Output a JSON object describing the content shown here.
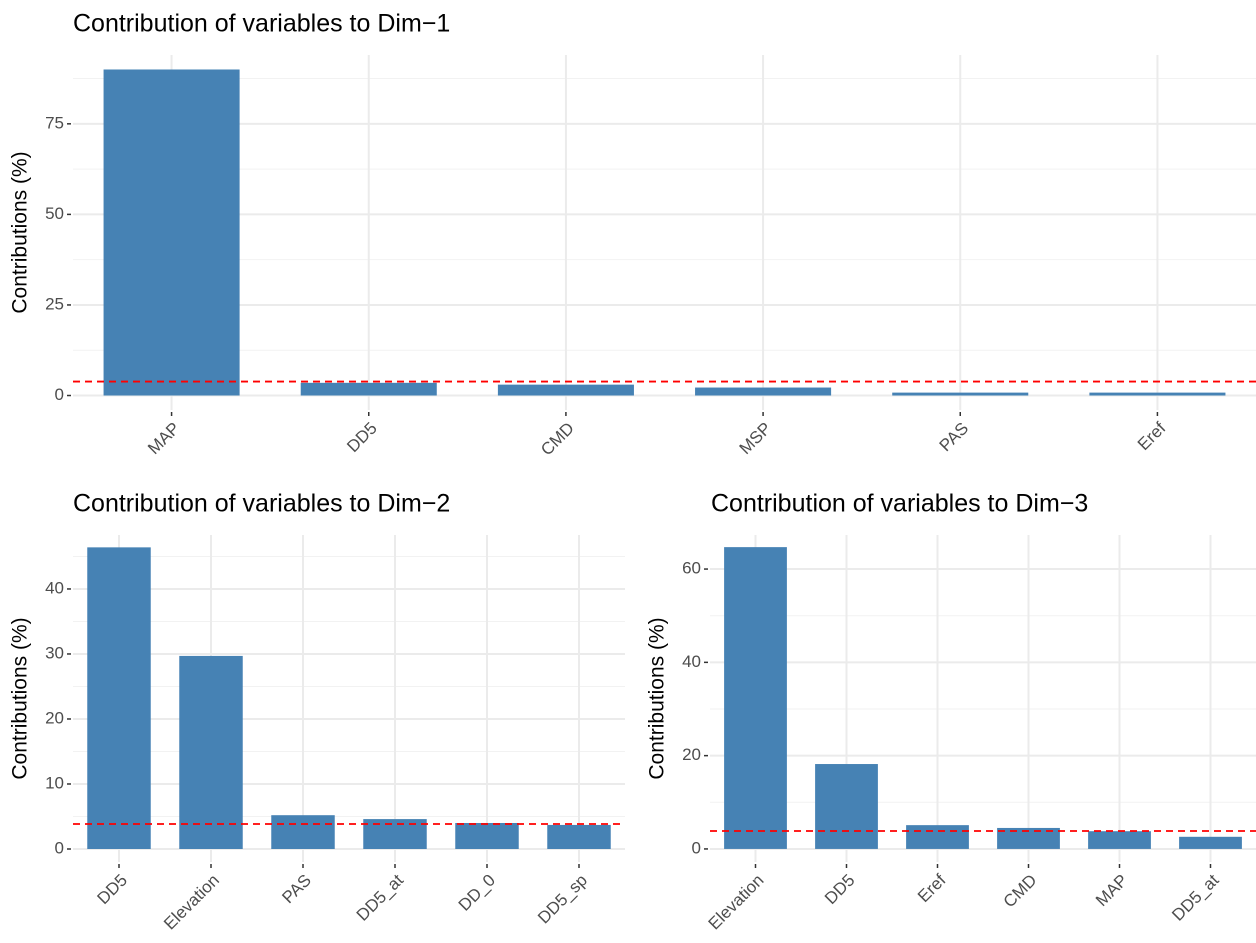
{
  "chart_data": [
    {
      "type": "bar",
      "title": "Contribution of variables to Dim−1",
      "y_label": "Contributions (%)",
      "categories": [
        "MAP",
        "DD5",
        "CMD",
        "MSP",
        "PAS",
        "Eref"
      ],
      "values": [
        90,
        3.5,
        3,
        2.2,
        0.8,
        0.8
      ],
      "color": "#4682b4",
      "ylim": [
        -4,
        94
      ],
      "yticks": [
        0,
        25,
        50,
        75
      ],
      "grid": true,
      "reference_line": {
        "value": 3.85,
        "color": "#ff0000",
        "style": "dashed"
      }
    },
    {
      "type": "bar",
      "title": "Contribution of variables to Dim−2",
      "y_label": "Contributions (%)",
      "categories": [
        "DD5",
        "Elevation",
        "PAS",
        "DD5_at",
        "DD_0",
        "DD5_sp"
      ],
      "values": [
        46.4,
        29.7,
        5.2,
        4.6,
        4.0,
        3.7
      ],
      "color": "#4682b4",
      "ylim": [
        -2,
        48.3
      ],
      "yticks": [
        0,
        10,
        20,
        30,
        40
      ],
      "grid": true,
      "reference_line": {
        "value": 3.85,
        "color": "#ff0000",
        "style": "dashed"
      }
    },
    {
      "type": "bar",
      "title": "Contribution of variables to Dim−3",
      "y_label": "Contributions (%)",
      "categories": [
        "Elevation",
        "DD5",
        "Eref",
        "CMD",
        "MAP",
        "DD5_at"
      ],
      "values": [
        64.7,
        18.2,
        5.1,
        4.5,
        3.8,
        2.6
      ],
      "color": "#4682b4",
      "ylim": [
        -2.8,
        67.3
      ],
      "yticks": [
        0,
        20,
        40,
        60
      ],
      "grid": true,
      "reference_line": {
        "value": 3.85,
        "color": "#ff0000",
        "style": "dashed"
      }
    }
  ]
}
